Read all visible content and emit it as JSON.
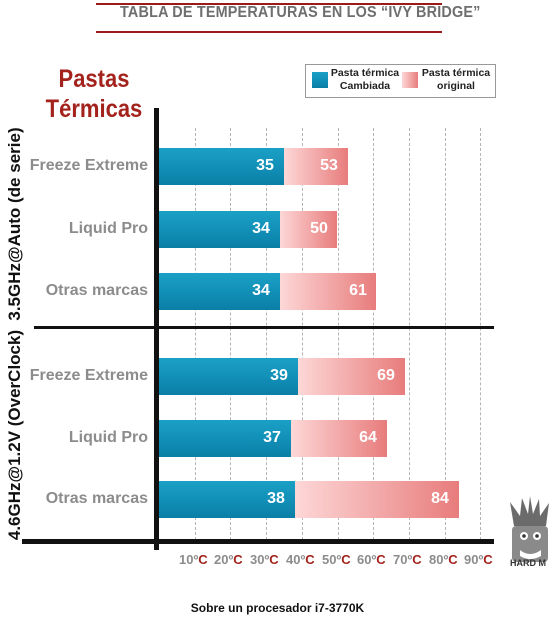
{
  "header": {
    "title": "TABLA DE TEMPERATURAS EN LOS “IVY BRIDGE”"
  },
  "heading": {
    "line1": "Pastas",
    "line2": "Térmicas"
  },
  "caption": "Sobre un procesador i7-3770K",
  "logo": {
    "text": "HARD M",
    "icon": "hardm-logo-icon"
  },
  "colors": {
    "title_rule": "#9b1b1b",
    "heading": "#a3221c",
    "series_changed": "#1290b8",
    "series_original": "#e87c7c"
  },
  "chart_data": {
    "type": "bar",
    "orientation": "horizontal",
    "stacked": true,
    "title": "TABLA DE TEMPERATURAS EN LOS “IVY BRIDGE”",
    "xlabel": "",
    "ylabel": "Pastas Térmicas",
    "xlim": [
      0,
      90
    ],
    "xticks": [
      10,
      20,
      30,
      40,
      50,
      60,
      70,
      80,
      90
    ],
    "x_tick_labels": [
      "10ºC",
      "20ºC",
      "30ºC",
      "40ºC",
      "50ºC",
      "60ºC",
      "70ºC",
      "80ºC",
      "90ºC"
    ],
    "tick_unit": "C",
    "grid": true,
    "legend_position": "top-right",
    "series": [
      {
        "name": "Pasta térmica Cambiada",
        "legend_line1": "Pasta térmica",
        "legend_line2": "Cambiada",
        "color": "#1290b8"
      },
      {
        "name": "Pasta térmica original",
        "legend_line1": "Pasta térmica",
        "legend_line2": "original",
        "color": "#e87c7c"
      }
    ],
    "groups": [
      {
        "name": "3.5GHz@Auto (de serie)",
        "categories": [
          "Freeze Extreme",
          "Liquid Pro",
          "Otras marcas"
        ],
        "changed": [
          35,
          34,
          34
        ],
        "original": [
          53,
          50,
          61
        ]
      },
      {
        "name": "4.6GHz@1.2V (OverClock)",
        "categories": [
          "Freeze Extreme",
          "Liquid Pro",
          "Otras marcas"
        ],
        "changed": [
          39,
          37,
          38
        ],
        "original": [
          69,
          64,
          84
        ]
      }
    ]
  }
}
